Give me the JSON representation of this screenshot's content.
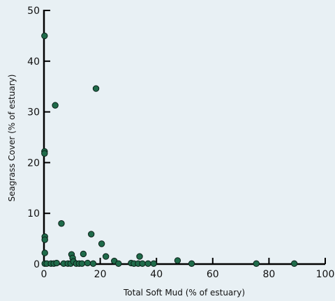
{
  "chart_data": {
    "type": "scatter",
    "title": "",
    "xlabel": "Total Soft Mud (% of estuary)",
    "ylabel": "Seagrass Cover (% of estuary)",
    "xlim": [
      0,
      100
    ],
    "ylim": [
      0,
      50
    ],
    "xticks": [
      0,
      20,
      40,
      60,
      80,
      100
    ],
    "yticks": [
      0,
      10,
      20,
      30,
      40,
      50
    ],
    "grid": false,
    "legend": "none",
    "marker_color": "#1f6b4a",
    "background": "#e8f0f4",
    "series": [
      {
        "points": [
          [
            0.2,
            45.0
          ],
          [
            0.2,
            22.2
          ],
          [
            0.2,
            21.8
          ],
          [
            0.3,
            5.4
          ],
          [
            0.3,
            4.8
          ],
          [
            0.3,
            2.2
          ],
          [
            0.3,
            0.1
          ],
          [
            1.0,
            0.1
          ],
          [
            2.5,
            0.1
          ],
          [
            3.5,
            0.1
          ],
          [
            4.0,
            31.3
          ],
          [
            4.5,
            0.2
          ],
          [
            6.2,
            8.0
          ],
          [
            7.0,
            0.1
          ],
          [
            8.5,
            0.1
          ],
          [
            9.5,
            0.1
          ],
          [
            9.8,
            1.9
          ],
          [
            10.2,
            1.2
          ],
          [
            10.5,
            0.5
          ],
          [
            11.5,
            0.1
          ],
          [
            12.5,
            0.1
          ],
          [
            13.5,
            0.1
          ],
          [
            14.0,
            2.0
          ],
          [
            15.5,
            0.2
          ],
          [
            16.8,
            5.9
          ],
          [
            17.5,
            0.1
          ],
          [
            18.5,
            34.6
          ],
          [
            20.5,
            4.0
          ],
          [
            22.0,
            1.5
          ],
          [
            25.0,
            0.6
          ],
          [
            26.5,
            0.1
          ],
          [
            31.0,
            0.2
          ],
          [
            32.0,
            0.1
          ],
          [
            33.5,
            0.1
          ],
          [
            34.0,
            1.5
          ],
          [
            35.0,
            0.1
          ],
          [
            37.0,
            0.1
          ],
          [
            39.0,
            0.1
          ],
          [
            47.5,
            0.7
          ],
          [
            52.5,
            0.1
          ],
          [
            75.5,
            0.1
          ],
          [
            89.0,
            0.1
          ]
        ]
      }
    ]
  }
}
